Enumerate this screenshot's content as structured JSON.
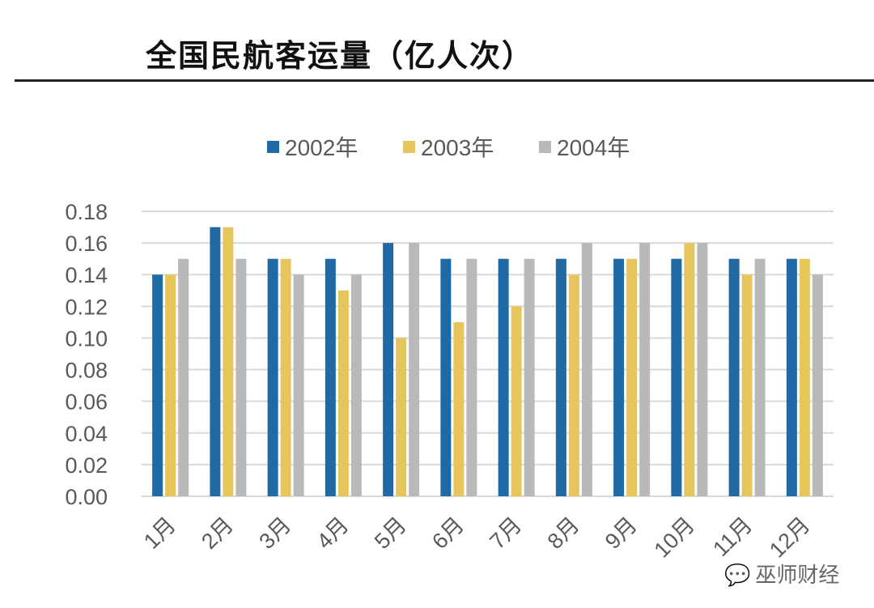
{
  "title": "全国民航客运量（亿人次）",
  "watermark": "巫师财经",
  "chart_data": {
    "type": "bar",
    "title": "全国民航客运量（亿人次）",
    "categories": [
      "1月",
      "2月",
      "3月",
      "4月",
      "5月",
      "6月",
      "7月",
      "8月",
      "9月",
      "10月",
      "11月",
      "12月"
    ],
    "series": [
      {
        "name": "2002年",
        "color": "#1f6aa5",
        "values": [
          0.14,
          0.17,
          0.15,
          0.15,
          0.16,
          0.15,
          0.15,
          0.15,
          0.15,
          0.15,
          0.15,
          0.15
        ]
      },
      {
        "name": "2003年",
        "color": "#e6c65c",
        "values": [
          0.14,
          0.17,
          0.15,
          0.13,
          0.1,
          0.11,
          0.12,
          0.14,
          0.15,
          0.16,
          0.14,
          0.15
        ]
      },
      {
        "name": "2004年",
        "color": "#b9b9b9",
        "values": [
          0.15,
          0.15,
          0.14,
          0.14,
          0.16,
          0.15,
          0.15,
          0.16,
          0.16,
          0.16,
          0.15,
          0.14
        ]
      }
    ],
    "yticks": [
      "0.00",
      "0.02",
      "0.04",
      "0.06",
      "0.08",
      "0.10",
      "0.12",
      "0.14",
      "0.16",
      "0.18"
    ],
    "ylim": [
      0,
      0.18
    ],
    "grid": true,
    "legend": "top-center"
  }
}
